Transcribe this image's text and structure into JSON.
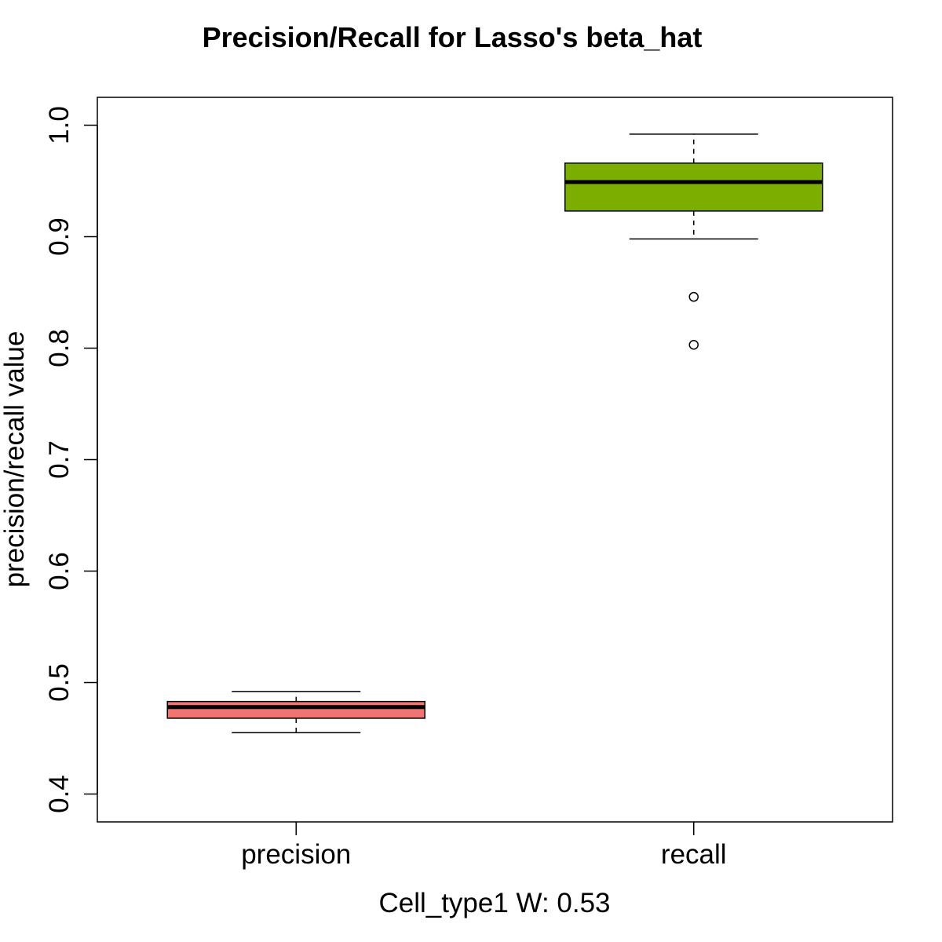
{
  "chart_data": {
    "type": "boxplot",
    "title": "Precision/Recall for Lasso's beta_hat",
    "xlabel": "Cell_type1  W: 0.53",
    "ylabel": "precision/recall value",
    "ylim": [
      0.375,
      1.025
    ],
    "yticks": [
      0.4,
      0.5,
      0.6,
      0.7,
      0.8,
      0.9,
      1.0
    ],
    "ytick_labels": [
      "0.4",
      "0.5",
      "0.6",
      "0.7",
      "0.8",
      "0.9",
      "1.0"
    ],
    "categories": [
      "precision",
      "recall"
    ],
    "boxes": [
      {
        "category": "precision",
        "color": "#f07470",
        "whisker_low": 0.455,
        "q1": 0.468,
        "median": 0.478,
        "q3": 0.483,
        "whisker_high": 0.492,
        "outliers": []
      },
      {
        "category": "recall",
        "color": "#7cae00",
        "whisker_low": 0.898,
        "q1": 0.923,
        "median": 0.949,
        "q3": 0.966,
        "whisker_high": 0.992,
        "outliers": [
          0.846,
          0.803
        ]
      }
    ],
    "grid": false,
    "legend": "none"
  }
}
